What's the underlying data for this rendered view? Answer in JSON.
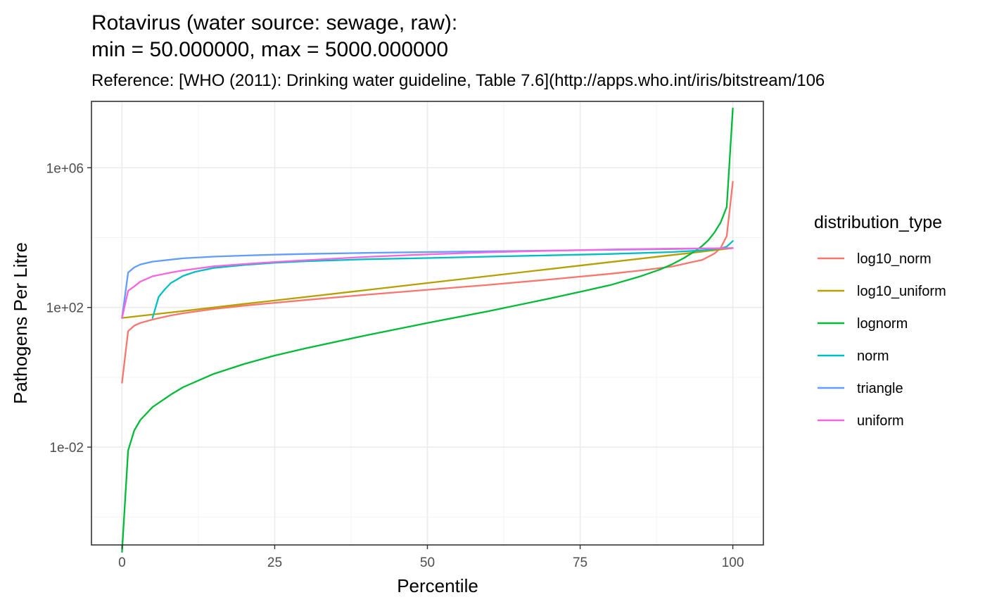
{
  "chart_data": {
    "type": "line",
    "title_line1": "Rotavirus (water source: sewage, raw):",
    "title_line2": "min = 50.000000, max = 5000.000000",
    "subtitle": "Reference: [WHO (2011): Drinking water guideline, Table 7.6](http://apps.who.int/iris/bitstream/106",
    "xlabel": "Percentile",
    "ylabel": "Pathogens Per Litre",
    "xlim": [
      -5,
      105
    ],
    "ylim_log10": [
      -4.8,
      7.9
    ],
    "y_scale": "log10",
    "x_ticks": [
      0,
      25,
      50,
      75,
      100
    ],
    "x_tick_labels": [
      "0",
      "25",
      "50",
      "75",
      "100"
    ],
    "y_ticks": [
      0.01,
      100.0,
      1000000.0
    ],
    "y_tick_labels": [
      "1e-02",
      "1e+02",
      "1e+06"
    ],
    "grid": true,
    "legend_title": "distribution_type",
    "legend_position": "right",
    "series": [
      {
        "name": "log10_norm",
        "color": "#F8766D",
        "points": [
          [
            0,
            0.7
          ],
          [
            1,
            21
          ],
          [
            2,
            30
          ],
          [
            3,
            36
          ],
          [
            5,
            45
          ],
          [
            8,
            59
          ],
          [
            10,
            68
          ],
          [
            15,
            90
          ],
          [
            20,
            112
          ],
          [
            25,
            136
          ],
          [
            30,
            163
          ],
          [
            40,
            231
          ],
          [
            50,
            320
          ],
          [
            60,
            444
          ],
          [
            70,
            630
          ],
          [
            80,
            923
          ],
          [
            85,
            1150
          ],
          [
            90,
            1480
          ],
          [
            95,
            2300
          ],
          [
            97,
            3500
          ],
          [
            98,
            5000
          ],
          [
            99,
            11000
          ],
          [
            100,
            400000
          ]
        ]
      },
      {
        "name": "log10_uniform",
        "color": "#B79F00",
        "points": [
          [
            0,
            50
          ],
          [
            10,
            79
          ],
          [
            20,
            126
          ],
          [
            30,
            199
          ],
          [
            40,
            315
          ],
          [
            50,
            500
          ],
          [
            60,
            792
          ],
          [
            70,
            1256
          ],
          [
            80,
            1990
          ],
          [
            90,
            3155
          ],
          [
            100,
            5000
          ]
        ]
      },
      {
        "name": "lognorm",
        "color": "#00BA38",
        "points": [
          [
            0,
            1e-05
          ],
          [
            1,
            0.008
          ],
          [
            2,
            0.03
          ],
          [
            3,
            0.06
          ],
          [
            5,
            0.14
          ],
          [
            8,
            0.32
          ],
          [
            10,
            0.52
          ],
          [
            15,
            1.25
          ],
          [
            20,
            2.4
          ],
          [
            25,
            4.2
          ],
          [
            30,
            6.7
          ],
          [
            40,
            16
          ],
          [
            50,
            36
          ],
          [
            60,
            78
          ],
          [
            70,
            180
          ],
          [
            75,
            280
          ],
          [
            80,
            440
          ],
          [
            85,
            790
          ],
          [
            88,
            1200
          ],
          [
            90,
            1700
          ],
          [
            92,
            2600
          ],
          [
            94,
            4300
          ],
          [
            95,
            5800
          ],
          [
            96,
            8500
          ],
          [
            97,
            14000
          ],
          [
            98,
            27000
          ],
          [
            99,
            75000
          ],
          [
            100,
            50000000
          ]
        ]
      },
      {
        "name": "norm",
        "color": "#00BFC4",
        "points": [
          [
            5,
            50
          ],
          [
            6,
            200
          ],
          [
            7,
            330
          ],
          [
            8,
            500
          ],
          [
            10,
            800
          ],
          [
            12,
            1050
          ],
          [
            15,
            1350
          ],
          [
            20,
            1650
          ],
          [
            25,
            1900
          ],
          [
            30,
            2100
          ],
          [
            40,
            2400
          ],
          [
            50,
            2600
          ],
          [
            60,
            2850
          ],
          [
            70,
            3100
          ],
          [
            80,
            3400
          ],
          [
            90,
            3850
          ],
          [
            95,
            4300
          ],
          [
            98,
            4900
          ],
          [
            99,
            5500
          ],
          [
            100,
            8000
          ]
        ]
      },
      {
        "name": "triangle",
        "color": "#619CFF",
        "points": [
          [
            0,
            50
          ],
          [
            1,
            1000
          ],
          [
            2,
            1400
          ],
          [
            3,
            1700
          ],
          [
            5,
            2050
          ],
          [
            10,
            2550
          ],
          [
            15,
            2850
          ],
          [
            20,
            3050
          ],
          [
            25,
            3250
          ],
          [
            30,
            3400
          ],
          [
            40,
            3650
          ],
          [
            50,
            3850
          ],
          [
            60,
            4050
          ],
          [
            70,
            4250
          ],
          [
            80,
            4450
          ],
          [
            90,
            4700
          ],
          [
            100,
            5000
          ]
        ]
      },
      {
        "name": "uniform",
        "color": "#F564E3",
        "points": [
          [
            0,
            50
          ],
          [
            1,
            300
          ],
          [
            2,
            400
          ],
          [
            3,
            550
          ],
          [
            5,
            780
          ],
          [
            8,
            1000
          ],
          [
            10,
            1150
          ],
          [
            15,
            1500
          ],
          [
            20,
            1750
          ],
          [
            25,
            2000
          ],
          [
            30,
            2250
          ],
          [
            40,
            2800
          ],
          [
            50,
            3300
          ],
          [
            60,
            3800
          ],
          [
            70,
            4200
          ],
          [
            80,
            4550
          ],
          [
            90,
            4850
          ],
          [
            100,
            5000
          ]
        ]
      }
    ]
  }
}
